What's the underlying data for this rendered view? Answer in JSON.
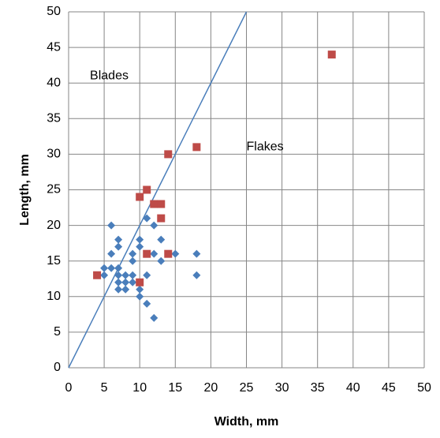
{
  "chart_data": {
    "type": "scatter",
    "xlabel": "Width, mm",
    "ylabel": "Length, mm",
    "xlim": [
      0,
      50
    ],
    "ylim": [
      0,
      50
    ],
    "xticks": [
      0,
      5,
      10,
      15,
      20,
      25,
      30,
      35,
      40,
      45,
      50
    ],
    "yticks": [
      0,
      5,
      10,
      15,
      20,
      25,
      30,
      35,
      40,
      45,
      50
    ],
    "grid": true,
    "annotations": [
      {
        "text": "Blades",
        "x": 3,
        "y": 41
      },
      {
        "text": "Flakes",
        "x": 25,
        "y": 31
      }
    ],
    "line": {
      "color": "#4a7ebb",
      "x": [
        0,
        25
      ],
      "y": [
        0,
        50
      ]
    },
    "series": [
      {
        "marker": "diamond",
        "color": "#4a7ebb",
        "x": [
          6,
          6,
          7,
          7,
          5,
          5,
          6,
          7,
          7,
          7,
          7,
          8,
          8,
          8,
          9,
          9,
          9,
          9,
          10,
          10,
          10,
          10,
          11,
          11,
          11,
          12,
          12,
          12,
          13,
          13,
          15,
          18,
          18
        ],
        "y": [
          20,
          16,
          18,
          17,
          14,
          13,
          14,
          14,
          13,
          12,
          11,
          13,
          12,
          11,
          16,
          15,
          13,
          12,
          18,
          17,
          11,
          10,
          21,
          13,
          9,
          20,
          16,
          7,
          18,
          15,
          16,
          16,
          13
        ]
      },
      {
        "marker": "square",
        "color": "#be4b48",
        "x": [
          4,
          10,
          11,
          14,
          18,
          37,
          12,
          13,
          13,
          11,
          14,
          10
        ],
        "y": [
          13,
          24,
          25,
          30,
          31,
          44,
          23,
          23,
          21,
          16,
          16,
          12
        ]
      }
    ]
  }
}
